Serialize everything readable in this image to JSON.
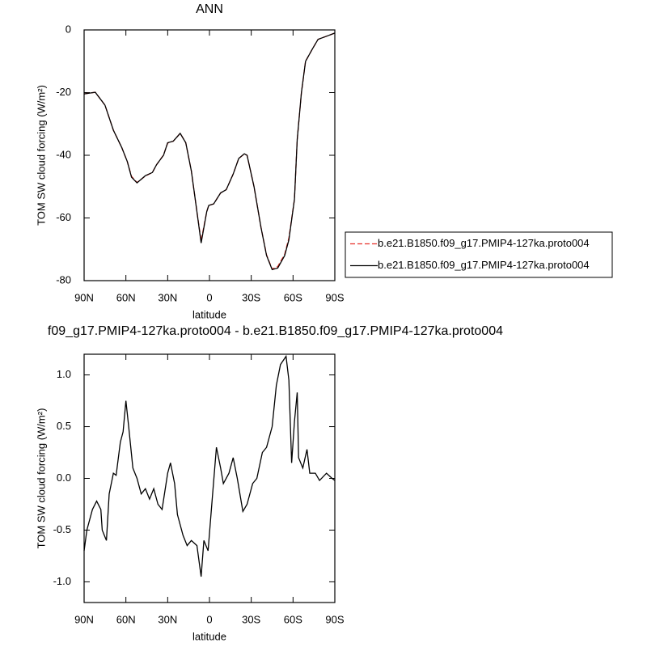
{
  "chart_data": [
    {
      "type": "line",
      "title": "ANN",
      "xlabel": "latitude",
      "ylabel": "TOM SW cloud forcing (W/m²)",
      "xlim": [
        90,
        -90
      ],
      "ylim": [
        -80,
        0
      ],
      "xticks": [
        {
          "value": 90,
          "label": "90N"
        },
        {
          "value": 60,
          "label": "60N"
        },
        {
          "value": 30,
          "label": "30N"
        },
        0,
        {
          "value": -30,
          "label": "30S"
        },
        {
          "value": -60,
          "label": "60S"
        },
        {
          "value": -90,
          "label": "90S"
        }
      ],
      "yticks": [
        0,
        -20,
        -40,
        -60,
        -80
      ],
      "legend": "right",
      "x": [
        90,
        82,
        75,
        69,
        63,
        59,
        56,
        52,
        46,
        41,
        38,
        33,
        30,
        26,
        21,
        17,
        13,
        9,
        6,
        2,
        0.5,
        -3,
        -8,
        -12,
        -17,
        -21,
        -25,
        -27,
        -32,
        -37,
        -41,
        -45,
        -49,
        -54,
        -57,
        -61,
        -63,
        -66,
        -69,
        -74,
        -78,
        -84,
        -90
      ],
      "series": [
        {
          "name": "b.e21.B1850.f09_g17.PMIP4-127ka.proto004",
          "color": "#e8302a",
          "dash": true,
          "values": [
            -20.4,
            -19.9,
            -24,
            -32,
            -37.5,
            -42,
            -46.7,
            -48.7,
            -46.6,
            -45.5,
            -43,
            -39.9,
            -36.1,
            -35.5,
            -33,
            -36,
            -45,
            -58,
            -67.3,
            -58,
            -56,
            -55.5,
            -52,
            -51,
            -46,
            -41,
            -39.6,
            -40,
            -50,
            -63,
            -71.8,
            -76.3,
            -75.5,
            -71.6,
            -66.4,
            -54,
            -35,
            -20,
            -10,
            -6,
            -3,
            -2,
            -1
          ]
        },
        {
          "name": "b.e21.B1850.f09_g17.PMIP4-127ka.proto004",
          "color": "#000000",
          "dash": false,
          "values": [
            -20.4,
            -19.9,
            -24,
            -32,
            -37.5,
            -42,
            -47,
            -48.8,
            -46.5,
            -45.5,
            -43,
            -40,
            -36,
            -35.5,
            -33,
            -36,
            -45,
            -58,
            -68,
            -58,
            -56,
            -55.5,
            -52,
            -51,
            -46,
            -41,
            -39.5,
            -40,
            -50,
            -63,
            -72,
            -76.5,
            -76,
            -72,
            -67,
            -54,
            -35,
            -20,
            -10,
            -6,
            -3,
            -2,
            -1
          ]
        }
      ]
    },
    {
      "type": "line",
      "title": "f09_g17.PMIP4-127ka.proto004 - b.e21.B1850.f09_g17.PMIP4-127ka.proto004",
      "xlabel": "latitude",
      "ylabel": "TOM SW cloud forcing (W/m²)",
      "xlim": [
        90,
        -90
      ],
      "ylim": [
        -1.2,
        1.2
      ],
      "xticks": [
        {
          "value": 90,
          "label": "90N"
        },
        {
          "value": 60,
          "label": "60N"
        },
        {
          "value": 30,
          "label": "30N"
        },
        0,
        {
          "value": -30,
          "label": "30S"
        },
        {
          "value": -60,
          "label": "60S"
        },
        {
          "value": -90,
          "label": "90S"
        }
      ],
      "yticks": [
        {
          "value": 1,
          "label": "1.0"
        },
        0.5,
        {
          "value": 0,
          "label": "0.0"
        },
        -0.5,
        {
          "value": -1,
          "label": "-1.0"
        }
      ],
      "x": [
        90,
        88,
        84,
        81,
        78,
        77,
        74,
        72,
        69,
        67,
        64,
        62,
        60,
        58,
        55,
        52,
        49,
        46,
        43,
        40,
        37,
        34,
        30,
        28,
        25,
        23,
        19,
        16,
        13,
        9,
        6,
        4,
        1,
        -2,
        -5,
        -8,
        -10,
        -14,
        -17,
        -20,
        -24,
        -27,
        -31,
        -34,
        -38,
        -41,
        -45,
        -48,
        -51,
        -55,
        -57,
        -59,
        -61,
        -63,
        -64,
        -67,
        -70,
        -72,
        -76,
        -79,
        -84,
        -88,
        -90
      ],
      "series": [
        {
          "name": null,
          "color": "#000000",
          "dash": false,
          "values": [
            -0.7,
            -0.5,
            -0.3,
            -0.22,
            -0.3,
            -0.5,
            -0.6,
            -0.15,
            0.05,
            0.03,
            0.35,
            0.45,
            0.75,
            0.5,
            0.1,
            0.0,
            -0.15,
            -0.1,
            -0.2,
            -0.1,
            -0.25,
            -0.3,
            0.05,
            0.15,
            -0.05,
            -0.35,
            -0.55,
            -0.65,
            -0.6,
            -0.65,
            -0.95,
            -0.6,
            -0.7,
            -0.2,
            0.3,
            0.1,
            -0.05,
            0.05,
            0.2,
            0.0,
            -0.32,
            -0.25,
            -0.05,
            0.0,
            0.25,
            0.3,
            0.5,
            0.9,
            1.1,
            1.18,
            0.95,
            0.15,
            0.55,
            0.83,
            0.2,
            0.1,
            0.28,
            0.05,
            0.05,
            -0.02,
            0.05,
            0.0,
            -0.02
          ]
        }
      ]
    }
  ]
}
